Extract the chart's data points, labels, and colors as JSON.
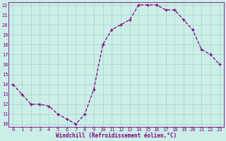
{
  "x": [
    0,
    1,
    2,
    3,
    4,
    5,
    6,
    7,
    8,
    9,
    10,
    11,
    12,
    13,
    14,
    15,
    16,
    17,
    18,
    19,
    20,
    21,
    22,
    23
  ],
  "y": [
    14,
    13,
    12,
    12,
    11.8,
    11,
    10.5,
    10,
    11,
    13.5,
    18,
    19.5,
    20,
    20.5,
    22,
    22,
    22,
    21.5,
    21.5,
    20.5,
    19.5,
    17.5,
    17,
    16
  ],
  "line_color": "#800080",
  "marker": "+",
  "marker_color": "#800080",
  "bg_color": "#cceee8",
  "grid_color": "#aaddcc",
  "xlabel": "Windchill (Refroidissement éolien,°C)",
  "xlabel_color": "#800080",
  "tick_color": "#800080",
  "ylim": [
    10,
    22
  ],
  "xlim": [
    -0.5,
    23.5
  ],
  "yticks": [
    10,
    11,
    12,
    13,
    14,
    15,
    16,
    17,
    18,
    19,
    20,
    21,
    22
  ],
  "xticks": [
    0,
    1,
    2,
    3,
    4,
    5,
    6,
    7,
    8,
    9,
    10,
    11,
    12,
    13,
    14,
    15,
    16,
    17,
    18,
    19,
    20,
    21,
    22,
    23
  ],
  "xtick_labels": [
    "0",
    "1",
    "2",
    "3",
    "4",
    "5",
    "6",
    "7",
    "8",
    "9",
    "10",
    "11",
    "12",
    "13",
    "14",
    "15",
    "16",
    "17",
    "18",
    "19",
    "20",
    "21",
    "22",
    "23"
  ]
}
